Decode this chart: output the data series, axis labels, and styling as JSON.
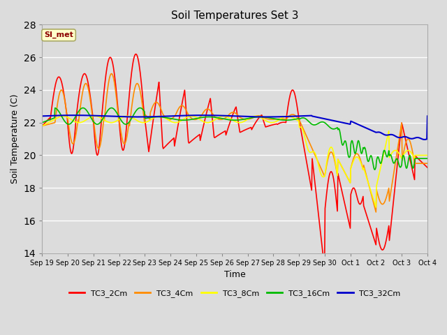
{
  "title": "Soil Temperatures Set 3",
  "xlabel": "Time",
  "ylabel": "Soil Temperature (C)",
  "ylim": [
    14,
    28
  ],
  "yticks": [
    14,
    16,
    18,
    20,
    22,
    24,
    26,
    28
  ],
  "background_color": "#dcdcdc",
  "series_colors": {
    "TC3_2Cm": "#ff0000",
    "TC3_4Cm": "#ff8c00",
    "TC3_8Cm": "#ffff00",
    "TC3_16Cm": "#00bb00",
    "TC3_32Cm": "#0000cc"
  },
  "legend_label": "SI_met",
  "xtick_labels": [
    "Sep 19",
    "Sep 20",
    "Sep 21",
    "Sep 22",
    "Sep 23",
    "Sep 24",
    "Sep 25",
    "Sep 26",
    "Sep 27",
    "Sep 28",
    "Sep 29",
    "Sep 30",
    "Oct 1",
    "Oct 2",
    "Oct 3",
    "Oct 4"
  ]
}
